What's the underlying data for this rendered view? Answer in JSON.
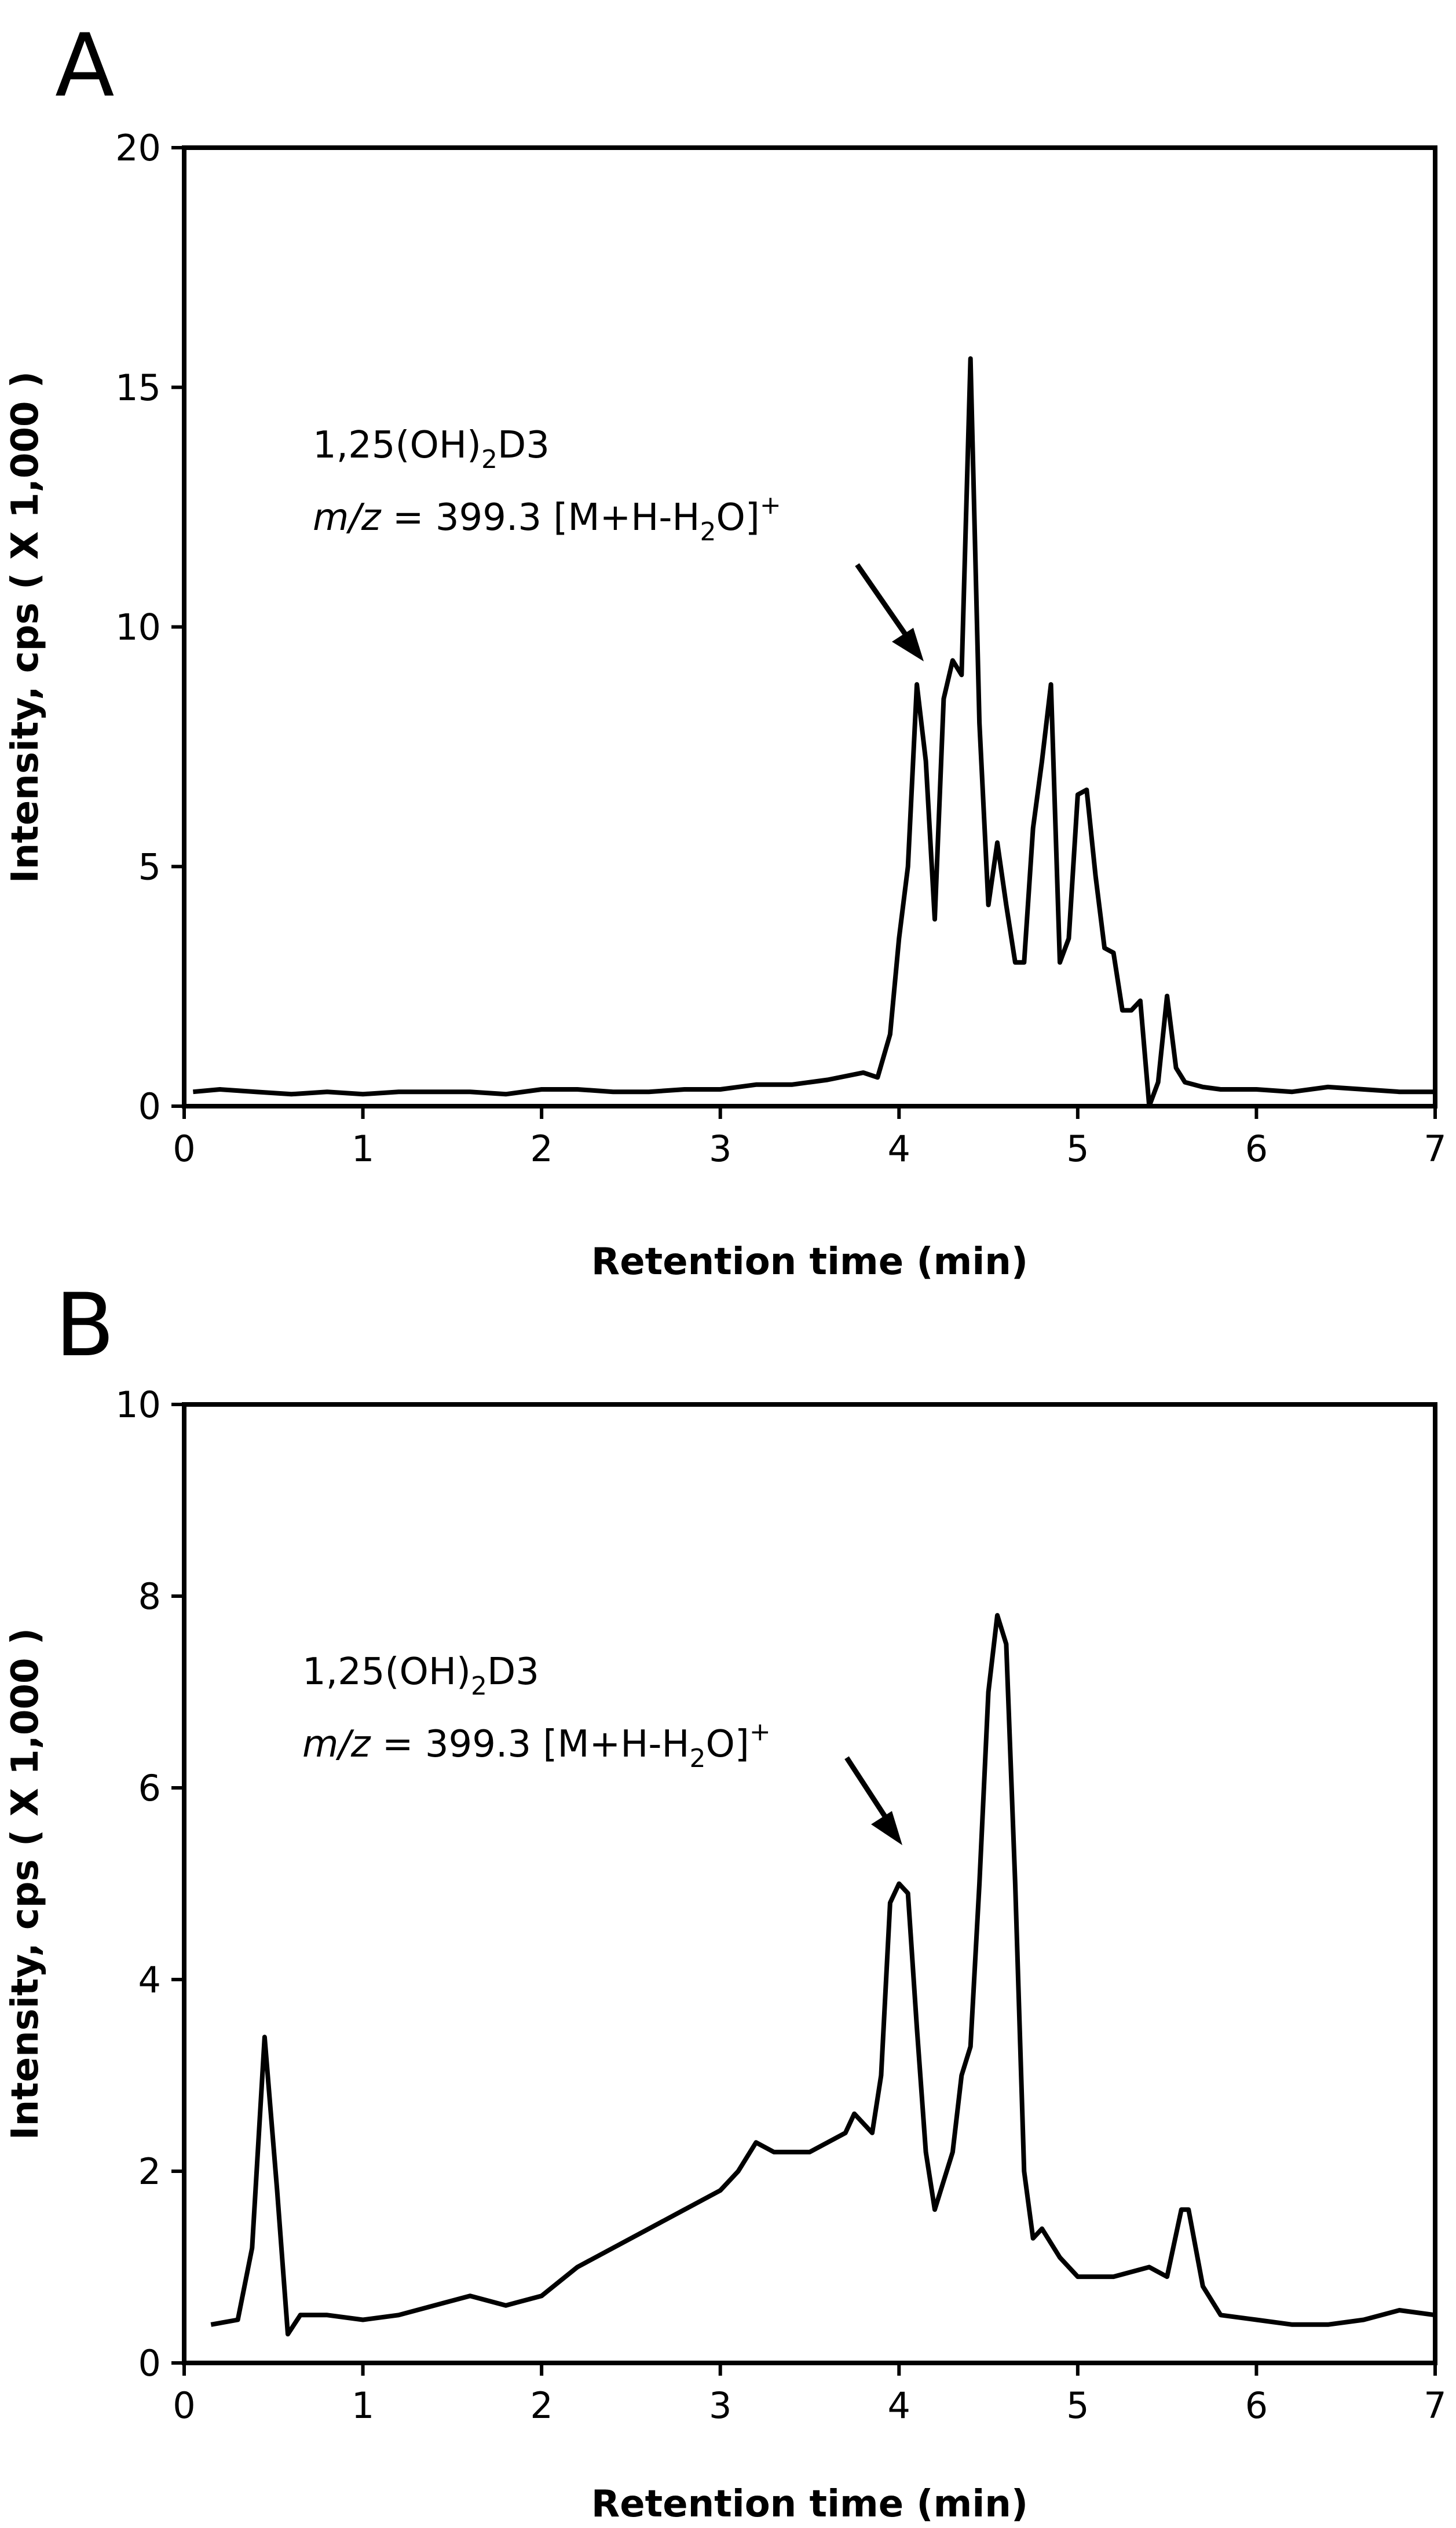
{
  "chart_data": [
    {
      "panel": "A",
      "type": "line",
      "xlabel": "Retention time (min)",
      "ylabel": "Intensity, cps ( X 1,000 )",
      "xlim": [
        0,
        7
      ],
      "ylim": [
        0,
        20
      ],
      "xticks": [
        "0",
        "1",
        "2",
        "3",
        "4",
        "5",
        "6",
        "7"
      ],
      "yticks": [
        "0",
        "5",
        "10",
        "15",
        "20"
      ],
      "annotation": {
        "line1": "1,25(OH)",
        "line1_sub": "2",
        "line1_end": "D3",
        "line2_italic": "m/z",
        "line2_mid": " = 399.3 [M+H-H",
        "line2_sub": "2",
        "line2_end": "O]",
        "line2_sup": "+",
        "arrow_to": [
          4.1,
          8.8
        ]
      },
      "series": [
        {
          "name": "trace",
          "x": [
            0.05,
            0.2,
            0.4,
            0.6,
            0.8,
            1.0,
            1.2,
            1.4,
            1.6,
            1.8,
            2.0,
            2.2,
            2.4,
            2.6,
            2.8,
            3.0,
            3.2,
            3.4,
            3.6,
            3.8,
            3.88,
            3.95,
            4.0,
            4.05,
            4.1,
            4.15,
            4.2,
            4.25,
            4.3,
            4.35,
            4.4,
            4.45,
            4.5,
            4.55,
            4.6,
            4.65,
            4.7,
            4.75,
            4.8,
            4.85,
            4.9,
            4.95,
            5.0,
            5.05,
            5.1,
            5.15,
            5.2,
            5.25,
            5.3,
            5.35,
            5.4,
            5.45,
            5.5,
            5.55,
            5.6,
            5.7,
            5.8,
            6.0,
            6.2,
            6.4,
            6.6,
            6.8,
            7.0
          ],
          "y": [
            0.3,
            0.35,
            0.3,
            0.25,
            0.3,
            0.25,
            0.3,
            0.3,
            0.3,
            0.25,
            0.35,
            0.35,
            0.3,
            0.3,
            0.35,
            0.35,
            0.45,
            0.45,
            0.55,
            0.7,
            0.6,
            1.5,
            3.5,
            5.0,
            8.8,
            7.2,
            3.9,
            8.5,
            9.3,
            9.0,
            15.6,
            8.0,
            4.2,
            5.5,
            4.2,
            3.0,
            3.0,
            5.8,
            7.2,
            8.8,
            3.0,
            3.5,
            6.5,
            6.6,
            4.8,
            3.3,
            3.2,
            2.0,
            2.0,
            2.2,
            0.0,
            0.5,
            2.3,
            0.8,
            0.5,
            0.4,
            0.35,
            0.35,
            0.3,
            0.4,
            0.35,
            0.3,
            0.3
          ]
        }
      ]
    },
    {
      "panel": "B",
      "type": "line",
      "xlabel": "Retention time (min)",
      "ylabel": "Intensity, cps ( X 1,000 )",
      "xlim": [
        0,
        7
      ],
      "ylim": [
        0,
        10
      ],
      "xticks": [
        "0",
        "1",
        "2",
        "3",
        "4",
        "5",
        "6",
        "7"
      ],
      "yticks": [
        "0",
        "2",
        "4",
        "6",
        "8",
        "10"
      ],
      "annotation": {
        "line1": "1,25(OH)",
        "line1_sub": "2",
        "line1_end": "D3",
        "line2_italic": "m/z",
        "line2_mid": " = 399.3 [M+H-H",
        "line2_sub": "2",
        "line2_end": "O]",
        "line2_sup": "+",
        "arrow_to": [
          4.0,
          5.0
        ]
      },
      "series": [
        {
          "name": "trace",
          "x": [
            0.15,
            0.3,
            0.38,
            0.45,
            0.52,
            0.58,
            0.65,
            0.8,
            1.0,
            1.2,
            1.4,
            1.6,
            1.8,
            2.0,
            2.2,
            2.4,
            2.6,
            2.8,
            3.0,
            3.1,
            3.2,
            3.3,
            3.5,
            3.7,
            3.75,
            3.85,
            3.9,
            3.95,
            4.0,
            4.05,
            4.1,
            4.15,
            4.2,
            4.3,
            4.35,
            4.4,
            4.45,
            4.5,
            4.55,
            4.6,
            4.65,
            4.7,
            4.75,
            4.8,
            4.9,
            5.0,
            5.2,
            5.4,
            5.5,
            5.58,
            5.62,
            5.7,
            5.8,
            6.0,
            6.2,
            6.4,
            6.6,
            6.8,
            7.0
          ],
          "y": [
            0.4,
            0.45,
            1.2,
            3.4,
            1.8,
            0.3,
            0.5,
            0.5,
            0.45,
            0.5,
            0.6,
            0.7,
            0.6,
            0.7,
            1.0,
            1.2,
            1.4,
            1.6,
            1.8,
            2.0,
            2.3,
            2.2,
            2.2,
            2.4,
            2.6,
            2.4,
            3.0,
            4.8,
            5.0,
            4.9,
            3.5,
            2.2,
            1.6,
            2.2,
            3.0,
            3.3,
            5.0,
            7.0,
            7.8,
            7.5,
            5.0,
            2.0,
            1.3,
            1.4,
            1.1,
            0.9,
            0.9,
            1.0,
            0.9,
            1.6,
            1.6,
            0.8,
            0.5,
            0.45,
            0.4,
            0.4,
            0.45,
            0.55,
            0.5
          ]
        }
      ]
    }
  ]
}
